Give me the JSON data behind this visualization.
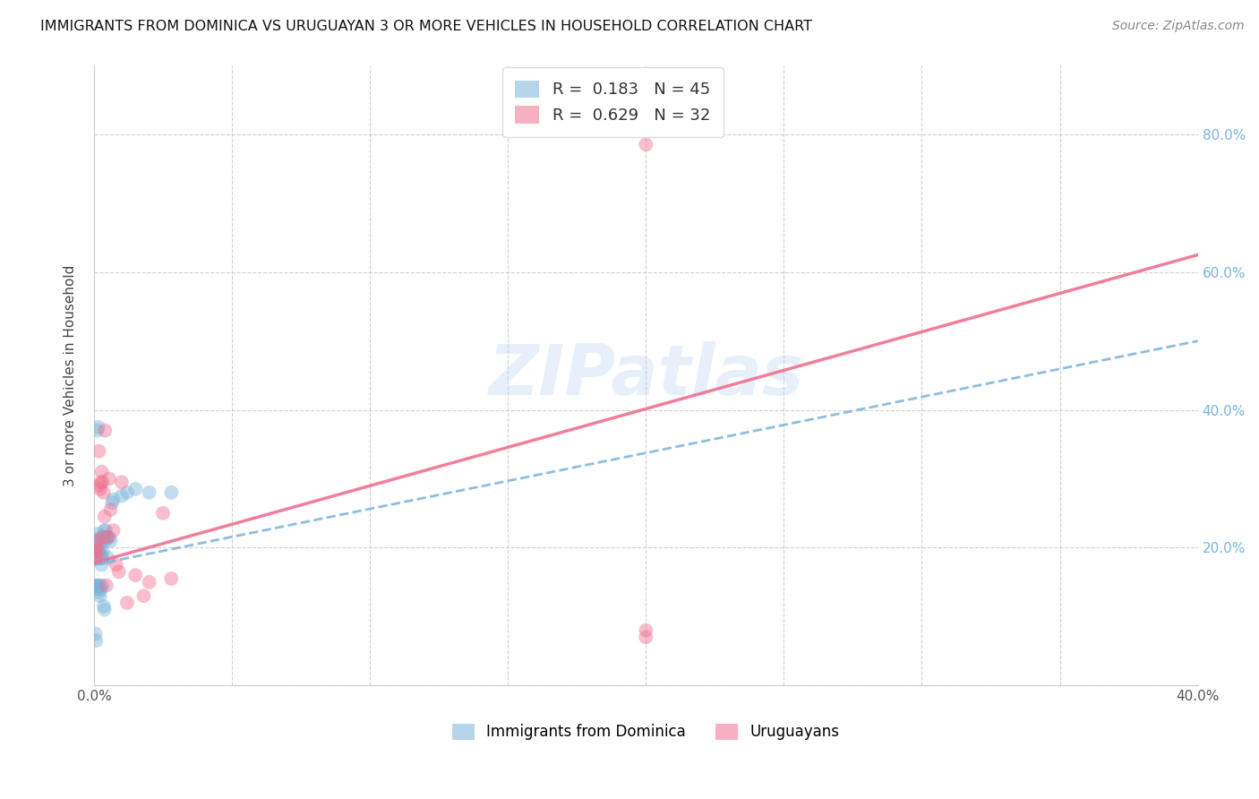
{
  "title": "IMMIGRANTS FROM DOMINICA VS URUGUAYAN 3 OR MORE VEHICLES IN HOUSEHOLD CORRELATION CHART",
  "source": "Source: ZipAtlas.com",
  "ylabel": "3 or more Vehicles in Household",
  "xlim": [
    0.0,
    0.4
  ],
  "ylim": [
    0.0,
    0.9
  ],
  "yticks": [
    0.0,
    0.2,
    0.4,
    0.6,
    0.8
  ],
  "ytick_labels": [
    "",
    "20.0%",
    "40.0%",
    "60.0%",
    "80.0%"
  ],
  "background_color": "#ffffff",
  "grid_color": "#cccccc",
  "watermark": "ZIPatlas",
  "blue_color": "#7ab3db",
  "pink_color": "#f07090",
  "blue_R": 0.183,
  "blue_N": 45,
  "pink_R": 0.629,
  "pink_N": 32,
  "legend_label_blue": "Immigrants from Dominica",
  "legend_label_pink": "Uruguayans",
  "blue_line_x": [
    0.0,
    0.4
  ],
  "blue_line_y": [
    0.175,
    0.5
  ],
  "pink_line_x": [
    0.0,
    0.4
  ],
  "pink_line_y": [
    0.178,
    0.625
  ],
  "blue_scatter_x": [
    0.0005,
    0.0008,
    0.001,
    0.0012,
    0.0015,
    0.0015,
    0.0018,
    0.002,
    0.002,
    0.0022,
    0.0025,
    0.0025,
    0.0028,
    0.003,
    0.003,
    0.0032,
    0.0035,
    0.0038,
    0.004,
    0.0042,
    0.0045,
    0.0048,
    0.005,
    0.0055,
    0.006,
    0.0065,
    0.007,
    0.0008,
    0.001,
    0.0012,
    0.0015,
    0.0018,
    0.002,
    0.0022,
    0.0025,
    0.003,
    0.0035,
    0.0038,
    0.01,
    0.012,
    0.015,
    0.02,
    0.028,
    0.0005,
    0.0007
  ],
  "blue_scatter_y": [
    0.195,
    0.21,
    0.185,
    0.37,
    0.375,
    0.22,
    0.205,
    0.2,
    0.185,
    0.195,
    0.215,
    0.185,
    0.175,
    0.215,
    0.185,
    0.195,
    0.215,
    0.225,
    0.21,
    0.225,
    0.215,
    0.215,
    0.185,
    0.215,
    0.21,
    0.265,
    0.27,
    0.145,
    0.145,
    0.14,
    0.145,
    0.135,
    0.145,
    0.13,
    0.14,
    0.145,
    0.115,
    0.11,
    0.275,
    0.28,
    0.285,
    0.28,
    0.28,
    0.075,
    0.065
  ],
  "pink_scatter_x": [
    0.0005,
    0.0008,
    0.001,
    0.0012,
    0.0015,
    0.0018,
    0.002,
    0.0022,
    0.0025,
    0.0028,
    0.003,
    0.0032,
    0.0035,
    0.0038,
    0.004,
    0.0045,
    0.005,
    0.0055,
    0.006,
    0.007,
    0.008,
    0.009,
    0.01,
    0.012,
    0.015,
    0.018,
    0.02,
    0.025,
    0.028,
    0.2,
    0.2,
    0.2
  ],
  "pink_scatter_y": [
    0.19,
    0.185,
    0.2,
    0.21,
    0.195,
    0.34,
    0.29,
    0.285,
    0.295,
    0.31,
    0.295,
    0.215,
    0.28,
    0.245,
    0.37,
    0.145,
    0.215,
    0.3,
    0.255,
    0.225,
    0.175,
    0.165,
    0.295,
    0.12,
    0.16,
    0.13,
    0.15,
    0.25,
    0.155,
    0.785,
    0.07,
    0.08
  ]
}
